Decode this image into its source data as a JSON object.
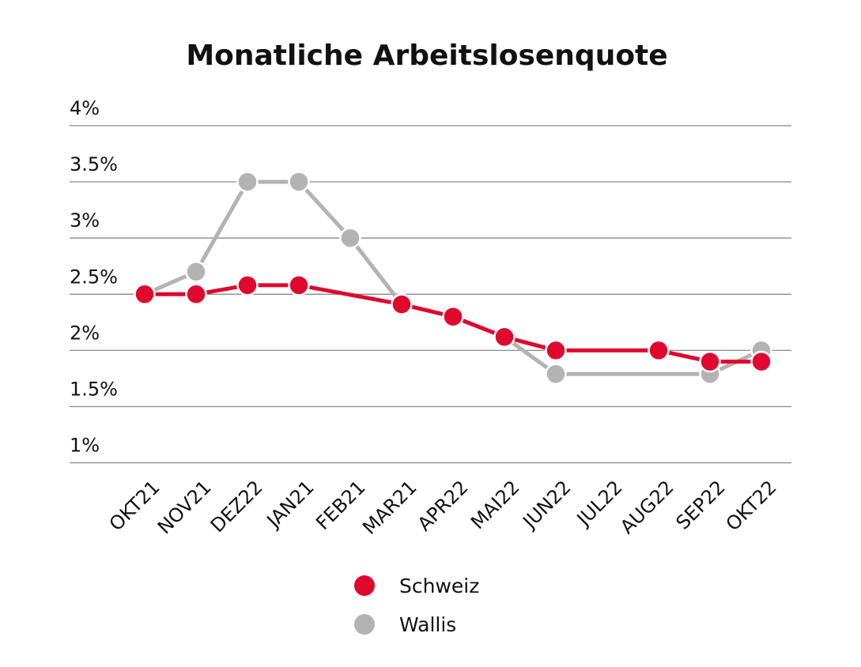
{
  "chart_data": {
    "type": "line",
    "title": "Monatliche Arbeitslosenquote",
    "xlabel": "",
    "ylabel": "",
    "categories": [
      "OKT21",
      "NOV21",
      "DEZ22",
      "JAN21",
      "FEB21",
      "MAR21",
      "APR22",
      "MAI22",
      "JUN22",
      "JUL22",
      "AUG22",
      "SEP22",
      "OKT22"
    ],
    "ylim": [
      0.9,
      4.0
    ],
    "yticks": [
      1,
      1.5,
      2,
      2.5,
      3,
      3.5,
      4
    ],
    "ytick_labels": [
      "1%",
      "1.5%",
      "2%",
      "2.5%",
      "3%",
      "3.5%",
      "4%"
    ],
    "grid": true,
    "legend_position": "bottom-center",
    "series": [
      {
        "name": "Schweiz",
        "color": "#e0082d",
        "values": [
          2.5,
          2.5,
          2.58,
          2.58,
          null,
          2.41,
          2.3,
          2.12,
          2.0,
          null,
          2.0,
          1.9,
          1.9
        ]
      },
      {
        "name": "Wallis",
        "color": "#b3b3b3",
        "values": [
          2.5,
          2.7,
          3.5,
          3.5,
          3.0,
          2.41,
          2.3,
          2.12,
          1.79,
          null,
          null,
          1.79,
          2.0
        ]
      }
    ]
  }
}
